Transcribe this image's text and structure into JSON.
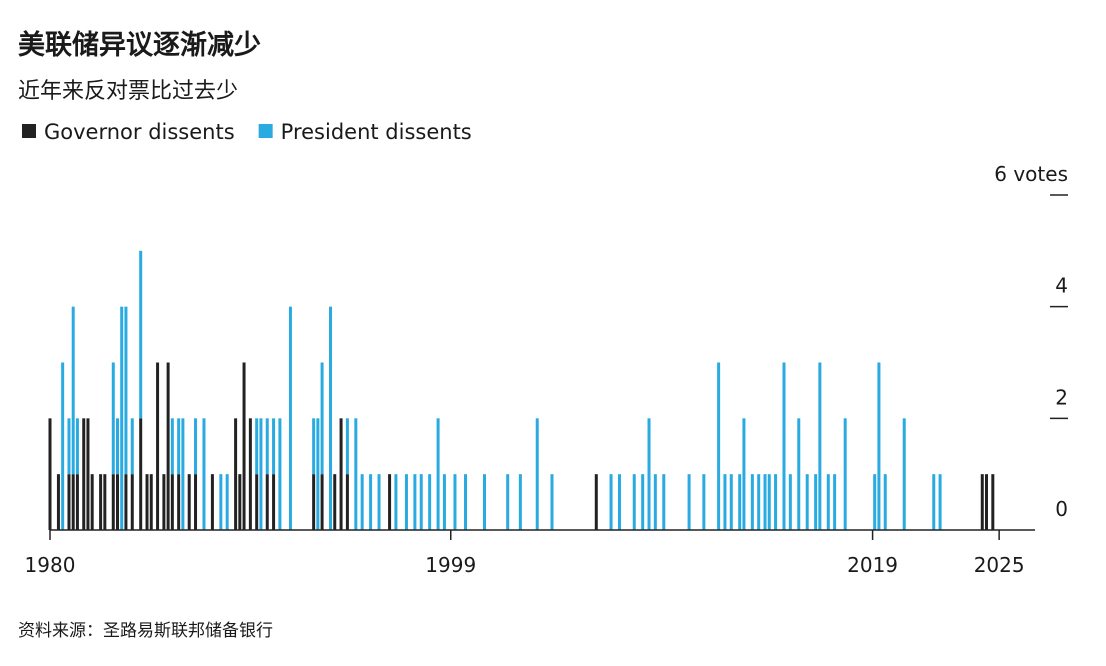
{
  "chart_data": {
    "type": "stacked_bar",
    "title": "美联储异议逐渐减少",
    "subtitle": "近年来反对票比过去少",
    "source": "资料来源：圣路易斯联邦储备银行",
    "x": [
      1980.0,
      1980.4,
      1980.6,
      1980.9,
      1981.1,
      1981.3,
      1981.6,
      1981.8,
      1982.0,
      1982.4,
      1982.6,
      1983.0,
      1983.2,
      1983.4,
      1983.6,
      1983.9,
      1984.3,
      1984.6,
      1984.8,
      1985.1,
      1985.4,
      1985.6,
      1985.8,
      1986.1,
      1986.3,
      1986.6,
      1986.9,
      1987.3,
      1987.7,
      1988.1,
      1988.4,
      1988.8,
      1989.0,
      1989.2,
      1989.5,
      1989.8,
      1990.0,
      1990.3,
      1990.6,
      1990.9,
      1991.4,
      1992.5,
      1992.7,
      1992.9,
      1993.3,
      1993.5,
      1993.8,
      1994.1,
      1994.5,
      1994.8,
      1995.2,
      1995.6,
      1996.1,
      1996.4,
      1996.9,
      1997.3,
      1997.6,
      1998.0,
      1998.4,
      1998.7,
      1999.2,
      1999.7,
      2000.6,
      2001.7,
      2002.3,
      2003.1,
      2003.8,
      2005.9,
      2006.6,
      2007.0,
      2007.7,
      2008.1,
      2008.4,
      2008.7,
      2009.1,
      2010.3,
      2011.0,
      2011.7,
      2012.0,
      2012.3,
      2012.7,
      2012.9,
      2013.3,
      2013.6,
      2013.9,
      2014.1,
      2014.4,
      2014.8,
      2015.1,
      2015.5,
      2015.9,
      2016.3,
      2016.5,
      2016.9,
      2017.2,
      2017.7,
      2019.1,
      2019.3,
      2019.6,
      2020.5,
      2021.9,
      2022.2,
      2024.2,
      2024.4,
      2024.7
    ],
    "series": [
      {
        "name": "Governor dissents",
        "color": "#222222",
        "values": [
          2,
          1,
          0,
          1,
          1,
          1,
          2,
          2,
          1,
          1,
          1,
          1,
          1,
          0,
          1,
          1,
          2,
          1,
          1,
          3,
          1,
          3,
          1,
          1,
          0,
          1,
          1,
          0,
          1,
          0,
          0,
          2,
          1,
          3,
          2,
          1,
          0,
          1,
          1,
          0,
          0,
          1,
          0,
          1,
          0,
          1,
          2,
          1,
          0,
          0,
          0,
          0,
          1,
          0,
          0,
          0,
          0,
          0,
          0,
          0,
          0,
          0,
          0,
          0,
          0,
          0,
          0,
          1,
          0,
          0,
          0,
          0,
          0,
          0,
          0,
          0,
          0,
          0,
          0,
          0,
          0,
          0,
          0,
          0,
          0,
          0,
          0,
          0,
          0,
          0,
          0,
          0,
          0,
          0,
          0,
          0,
          0,
          0,
          0,
          0,
          0,
          0,
          1,
          1,
          1
        ]
      },
      {
        "name": "President dissents",
        "color": "#29aae1",
        "values": [
          0,
          0,
          3,
          1,
          3,
          1,
          0,
          0,
          0,
          0,
          0,
          2,
          1,
          4,
          3,
          1,
          3,
          0,
          0,
          0,
          0,
          0,
          1,
          1,
          2,
          0,
          1,
          2,
          0,
          1,
          1,
          0,
          0,
          0,
          0,
          1,
          2,
          1,
          1,
          2,
          4,
          1,
          2,
          2,
          4,
          0,
          0,
          1,
          2,
          1,
          1,
          1,
          0,
          1,
          1,
          1,
          1,
          1,
          2,
          1,
          1,
          1,
          1,
          1,
          1,
          2,
          1,
          0,
          1,
          1,
          1,
          1,
          2,
          1,
          1,
          1,
          1,
          3,
          1,
          1,
          1,
          2,
          1,
          1,
          1,
          1,
          1,
          3,
          1,
          2,
          1,
          1,
          3,
          1,
          1,
          2,
          1,
          3,
          1,
          2,
          1,
          1,
          0,
          0,
          0
        ]
      }
    ],
    "xlim": [
      1980,
      2026.7
    ],
    "xticks": [
      1980,
      1999,
      2019,
      2025
    ],
    "ylim": [
      0,
      6
    ],
    "yticks": [
      0,
      2,
      4,
      {
        "value": 6,
        "label": "6 votes"
      }
    ]
  }
}
